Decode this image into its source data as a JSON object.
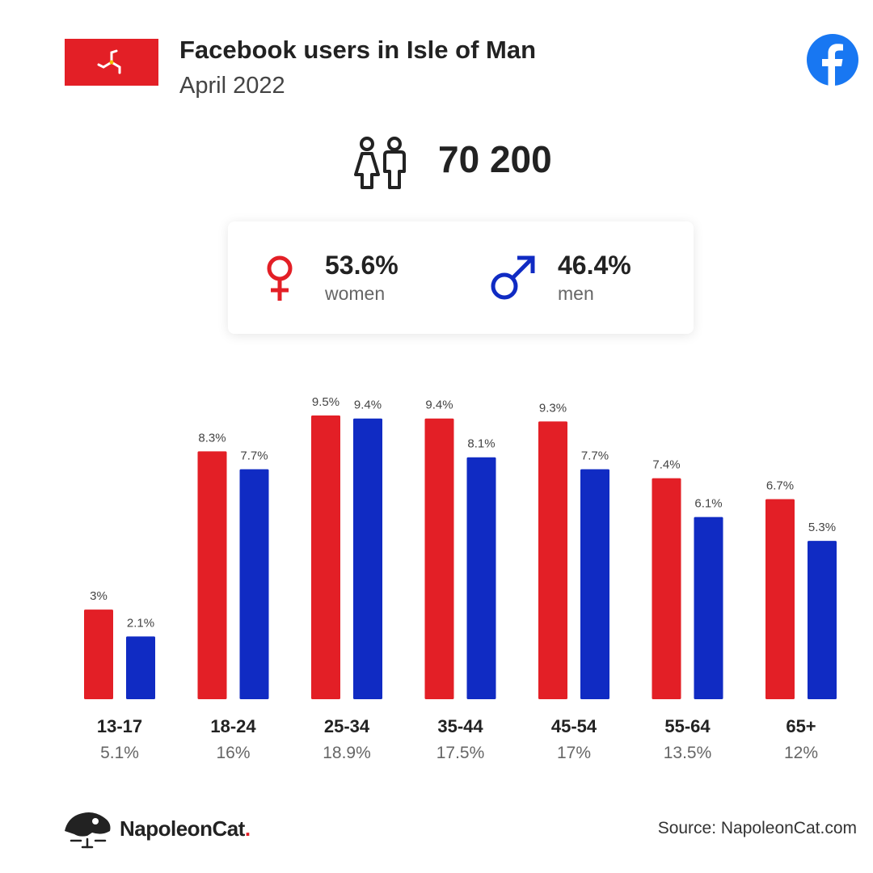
{
  "header": {
    "title": "Facebook users in Isle of Man",
    "subtitle": "April 2022"
  },
  "icons": {
    "flag": "isle-of-man-flag",
    "brand": "facebook-logo",
    "users": "people-icon",
    "women": "female-symbol-icon",
    "men": "male-symbol-icon"
  },
  "colors": {
    "women": "#e31f26",
    "men": "#102bc3",
    "facebook": "#1877f2"
  },
  "summary": {
    "total_users": "70 200",
    "women_pct": "53.6%",
    "women_label": "women",
    "men_pct": "46.4%",
    "men_label": "men"
  },
  "chart_data": {
    "type": "bar",
    "categories": [
      "13-17",
      "18-24",
      "25-34",
      "35-44",
      "45-54",
      "55-64",
      "65+"
    ],
    "category_totals": [
      "5.1%",
      "16%",
      "18.9%",
      "17.5%",
      "17%",
      "13.5%",
      "12%"
    ],
    "series": [
      {
        "key": "women",
        "values": [
          3,
          8.3,
          9.5,
          9.4,
          9.3,
          7.4,
          6.7
        ],
        "labels": [
          "3%",
          "8.3%",
          "9.5%",
          "9.4%",
          "9.3%",
          "7.4%",
          "6.7%"
        ]
      },
      {
        "key": "men",
        "values": [
          2.1,
          7.7,
          9.4,
          8.1,
          7.7,
          6.1,
          5.3
        ],
        "labels": [
          "2.1%",
          "7.7%",
          "9.4%",
          "8.1%",
          "7.7%",
          "6.1%",
          "5.3%"
        ]
      }
    ],
    "ylim": [
      0,
      9.5
    ],
    "grid": false,
    "legend": "none"
  },
  "footer": {
    "brand_name": "NapoleonCat",
    "brand_dot": ".",
    "source": "Source: NapoleonCat.com"
  }
}
